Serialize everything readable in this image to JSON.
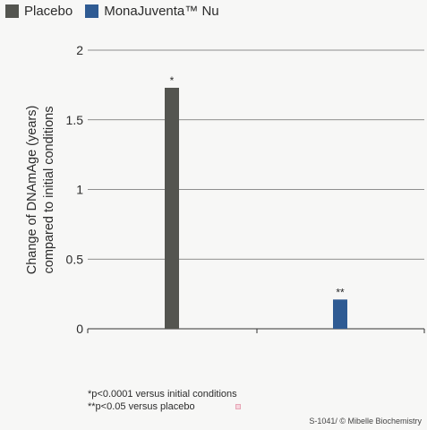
{
  "legend": [
    {
      "name": "Placebo",
      "color": "#545550"
    },
    {
      "name": "MonaJuventa™ Nu",
      "color": "#2f5b93"
    }
  ],
  "chart_data": {
    "type": "bar",
    "categories": [
      "Placebo",
      "MonaJuventa™ Nu"
    ],
    "values": [
      1.73,
      0.21
    ],
    "colors": [
      "#545550",
      "#2f5b93"
    ],
    "annotations": [
      "*",
      "**"
    ],
    "ylabel": [
      "Change of DNAmAge (years)",
      "compared to initial conditions"
    ],
    "ylim": [
      0,
      2
    ],
    "yticks": [
      0,
      0.5,
      1,
      1.5,
      2
    ],
    "ytick_labels": [
      "0",
      "0.5",
      "1",
      "1.5",
      "2"
    ],
    "grid": true
  },
  "footnotes": [
    "*p<0.0001 versus initial conditions",
    "**p<0.05 versus placebo"
  ],
  "credit": "S-1041/ © Mibelle Biochemistry"
}
